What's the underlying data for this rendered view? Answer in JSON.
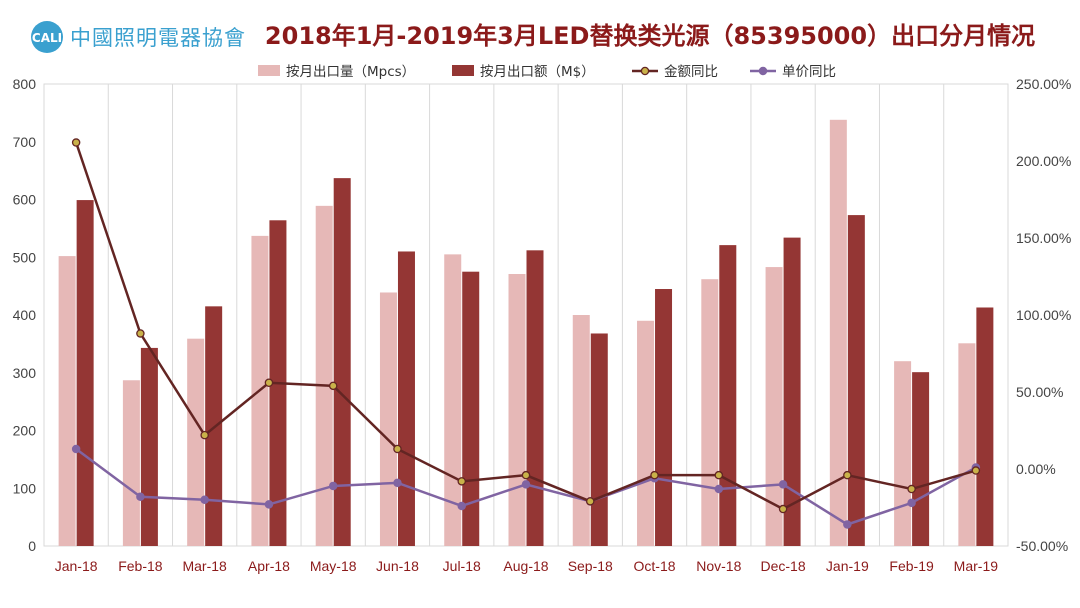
{
  "header": {
    "logo_text": "中國照明電器協會",
    "logo_mark": "CALI",
    "title": "2018年1月-2019年3月LED替换类光源（85395000）出口分月情况"
  },
  "colors": {
    "volume": "#e6b8b7",
    "value": "#943634",
    "value_yoy_line": "#632523",
    "value_yoy_marker": "#c9b24a",
    "price_yoy_line": "#8064a2"
  },
  "chart_data": {
    "type": "bar",
    "categories": [
      "Jan-18",
      "Feb-18",
      "Mar-18",
      "Apr-18",
      "May-18",
      "Jun-18",
      "Jul-18",
      "Aug-18",
      "Sep-18",
      "Oct-18",
      "Nov-18",
      "Dec-18",
      "Jan-19",
      "Feb-19",
      "Mar-19"
    ],
    "series": [
      {
        "name": "按月出口量（Mpcs）",
        "type": "bar",
        "axis": "left",
        "values": [
          502,
          287,
          359,
          537,
          589,
          439,
          505,
          471,
          400,
          390,
          462,
          483,
          738,
          320,
          351
        ]
      },
      {
        "name": "按月出口额（M$）",
        "type": "bar",
        "axis": "left",
        "values": [
          599,
          343,
          415,
          564,
          637,
          510,
          475,
          512,
          368,
          445,
          521,
          534,
          573,
          301,
          413
        ]
      },
      {
        "name": "金额同比",
        "type": "line",
        "axis": "right",
        "values": [
          2.12,
          0.88,
          0.22,
          0.56,
          0.54,
          0.13,
          -0.08,
          -0.04,
          -0.21,
          -0.04,
          -0.04,
          -0.26,
          -0.04,
          -0.13,
          -0.01
        ]
      },
      {
        "name": "单价同比",
        "type": "line",
        "axis": "right",
        "values": [
          0.13,
          -0.18,
          -0.2,
          -0.23,
          -0.11,
          -0.09,
          -0.24,
          -0.1,
          -0.21,
          -0.06,
          -0.13,
          -0.1,
          -0.36,
          -0.22,
          0.01
        ]
      }
    ],
    "left_axis": {
      "min": 0,
      "max": 800,
      "ticks": [
        "0",
        "100",
        "200",
        "300",
        "400",
        "500",
        "600",
        "700",
        "800"
      ]
    },
    "right_axis": {
      "min": -0.5,
      "max": 2.5,
      "ticks": [
        "-50.00%",
        "0.00%",
        "50.00%",
        "100.00%",
        "150.00%",
        "200.00%",
        "250.00%"
      ]
    },
    "grid": "vertical",
    "legend_position": "top"
  }
}
